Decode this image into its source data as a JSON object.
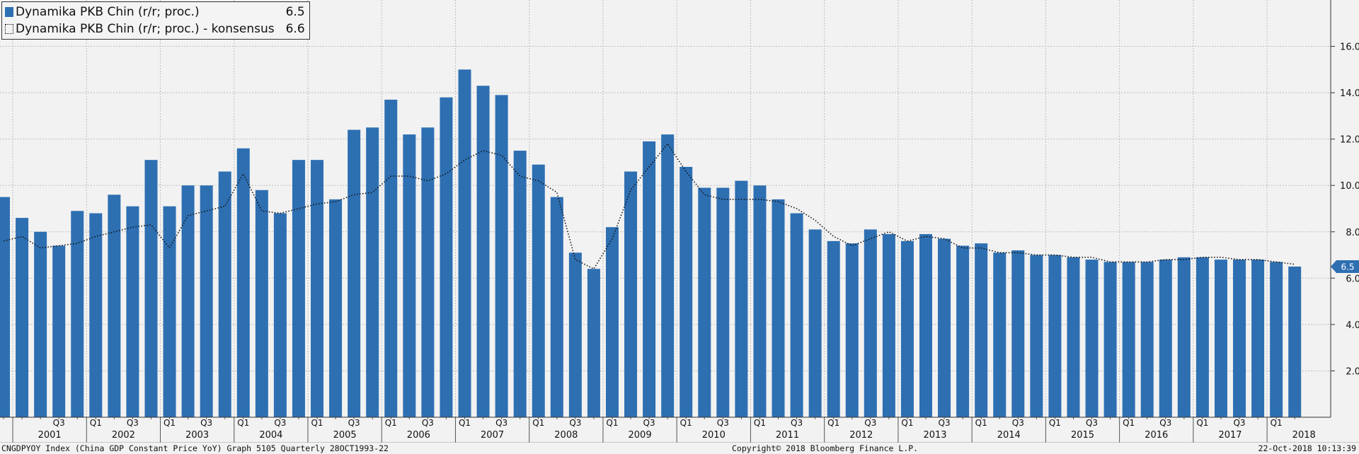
{
  "legend": {
    "series_label": "Dynamika PKB Chin (r/r; proc.)",
    "series_value": "6.5",
    "consensus_label": "Dynamika PKB Chin (r/r; proc.) - konsensus",
    "consensus_value": "6.6"
  },
  "last_value_marker": "6.5",
  "footer": {
    "left": "CNGDPYOY Index (China GDP Constant Price YoY) Graph 5105  Quarterly 28OCT1993-22",
    "center": "Copyright© 2018 Bloomberg Finance L.P.",
    "right": "22-Oct-2018 10:13:39"
  },
  "colors": {
    "bar": "#2e6fb2",
    "line": "#111111",
    "background": "#f2f2f2",
    "grid": "#bdbdbd",
    "marker": "#2e6fb2"
  },
  "chart_data": {
    "type": "bar",
    "y_axis_position": "right",
    "yticks": [
      "2.0",
      "4.0",
      "6.0",
      "8.0",
      "10.0",
      "12.0",
      "14.0",
      "16.0"
    ],
    "ylim": [
      0,
      18
    ],
    "grid": true,
    "legend_position": "top-left",
    "x_start": "2000 Q4",
    "years": [
      "2001",
      "2002",
      "2003",
      "2004",
      "2005",
      "2006",
      "2007",
      "2008",
      "2009",
      "2010",
      "2011",
      "2012",
      "2013",
      "2014",
      "2015",
      "2016",
      "2017",
      "2018"
    ],
    "quarter_labels": [
      "Q1",
      "Q3"
    ],
    "series": [
      {
        "name": "Dynamika PKB Chin (r/r; proc.)",
        "kind": "bar",
        "values": [
          9.5,
          8.6,
          8.0,
          7.4,
          8.9,
          8.8,
          9.6,
          9.1,
          11.1,
          9.1,
          10.0,
          10.0,
          10.6,
          11.6,
          9.8,
          8.8,
          11.1,
          11.1,
          9.4,
          12.4,
          12.5,
          13.7,
          12.2,
          12.5,
          13.8,
          15.0,
          14.3,
          13.9,
          11.5,
          10.9,
          9.5,
          7.1,
          6.4,
          8.2,
          10.6,
          11.9,
          12.2,
          10.8,
          9.9,
          9.9,
          10.2,
          10.0,
          9.4,
          8.8,
          8.1,
          7.6,
          7.5,
          8.1,
          7.9,
          7.6,
          7.9,
          7.7,
          7.4,
          7.5,
          7.1,
          7.2,
          7.0,
          7.0,
          6.9,
          6.8,
          6.7,
          6.7,
          6.7,
          6.8,
          6.9,
          6.9,
          6.8,
          6.8,
          6.8,
          6.7,
          6.5
        ]
      },
      {
        "name": "Dynamika PKB Chin (r/r; proc.) - konsensus",
        "kind": "dotted-line",
        "values": [
          7.6,
          7.8,
          7.3,
          7.4,
          7.5,
          7.8,
          8.0,
          8.2,
          8.3,
          7.3,
          8.7,
          8.9,
          9.1,
          10.5,
          8.9,
          8.8,
          9.0,
          9.2,
          9.3,
          9.6,
          9.7,
          10.4,
          10.4,
          10.2,
          10.5,
          11.1,
          11.5,
          11.3,
          10.4,
          10.2,
          9.7,
          6.8,
          6.4,
          7.7,
          9.8,
          10.8,
          11.8,
          10.6,
          9.6,
          9.4,
          9.4,
          9.4,
          9.3,
          9.0,
          8.5,
          7.8,
          7.4,
          7.7,
          8.0,
          7.6,
          7.8,
          7.7,
          7.3,
          7.3,
          7.1,
          7.1,
          7.0,
          7.0,
          6.9,
          6.9,
          6.7,
          6.7,
          6.7,
          6.8,
          6.8,
          6.9,
          6.9,
          6.8,
          6.8,
          6.7,
          6.6
        ]
      }
    ]
  }
}
